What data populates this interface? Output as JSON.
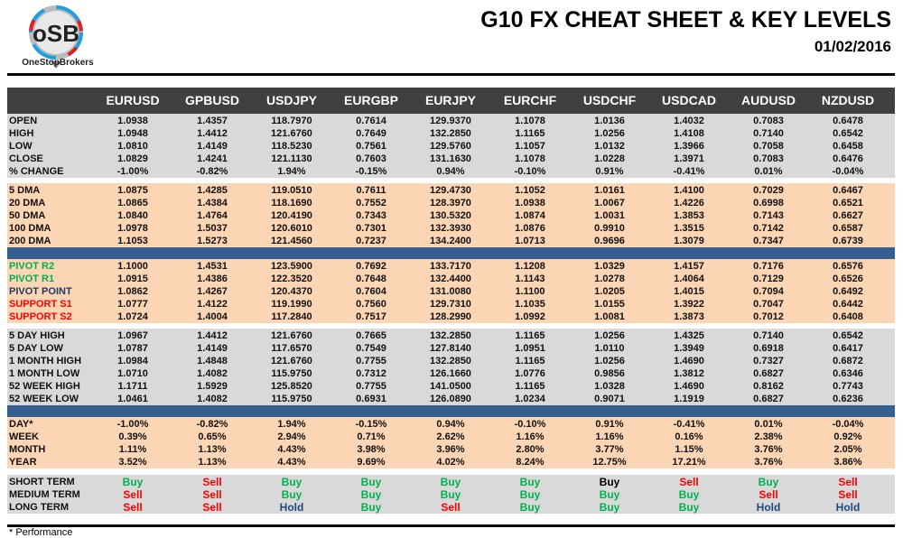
{
  "header": {
    "title": "G10 FX CHEAT SHEET & KEY LEVELS",
    "date": "01/02/2016",
    "logo_text": "OSB",
    "logo_caption": "OneStopBrokers"
  },
  "columns": [
    "EURUSD",
    "GPBUSD",
    "USDJPY",
    "EURGBP",
    "EURJPY",
    "EURCHF",
    "USDCHF",
    "USDCAD",
    "AUDUSD",
    "NZDUSD"
  ],
  "colors": {
    "header_bg": "#404040",
    "grey": "#d9d9d9",
    "peach": "#fcd5b4",
    "blue_band": "#366092",
    "green": "#00b050",
    "red": "#ff0000",
    "navy": "#1f3864",
    "hold": "#1f497d",
    "black": "#000000"
  },
  "sections": [
    {
      "bg": "grey",
      "rows": [
        {
          "label": "OPEN",
          "values": [
            "1.0938",
            "1.4357",
            "118.7970",
            "0.7614",
            "129.9370",
            "1.1078",
            "1.0136",
            "1.4032",
            "0.7083",
            "0.6478"
          ]
        },
        {
          "label": "HIGH",
          "values": [
            "1.0948",
            "1.4412",
            "121.6760",
            "0.7649",
            "132.2850",
            "1.1165",
            "1.0256",
            "1.4108",
            "0.7140",
            "0.6542"
          ]
        },
        {
          "label": "LOW",
          "values": [
            "1.0810",
            "1.4149",
            "118.5230",
            "0.7561",
            "129.5760",
            "1.1057",
            "1.0132",
            "1.3966",
            "0.7058",
            "0.6458"
          ]
        },
        {
          "label": "CLOSE",
          "values": [
            "1.0829",
            "1.4241",
            "121.1130",
            "0.7603",
            "131.1630",
            "1.1078",
            "1.0228",
            "1.3971",
            "0.7083",
            "0.6476"
          ]
        },
        {
          "label": "% CHANGE",
          "values": [
            "-1.00%",
            "-0.82%",
            "1.94%",
            "-0.15%",
            "0.94%",
            "-0.10%",
            "0.91%",
            "-0.41%",
            "0.01%",
            "-0.04%"
          ]
        }
      ]
    },
    {
      "bg": "peach",
      "rows": [
        {
          "label": "5 DMA",
          "values": [
            "1.0875",
            "1.4285",
            "119.0510",
            "0.7611",
            "129.4730",
            "1.1052",
            "1.0161",
            "1.4100",
            "0.7029",
            "0.6467"
          ]
        },
        {
          "label": "20 DMA",
          "values": [
            "1.0865",
            "1.4384",
            "118.1690",
            "0.7552",
            "128.3970",
            "1.0938",
            "1.0067",
            "1.4226",
            "0.6998",
            "0.6521"
          ]
        },
        {
          "label": "50 DMA",
          "values": [
            "1.0840",
            "1.4764",
            "120.4190",
            "0.7343",
            "130.5320",
            "1.0874",
            "1.0031",
            "1.3853",
            "0.7143",
            "0.6627"
          ]
        },
        {
          "label": "100 DMA",
          "values": [
            "1.0978",
            "1.5037",
            "120.6010",
            "0.7301",
            "132.3930",
            "1.0876",
            "0.9910",
            "1.3515",
            "0.7142",
            "0.6587"
          ]
        },
        {
          "label": "200 DMA",
          "values": [
            "1.1053",
            "1.5273",
            "121.4560",
            "0.7237",
            "134.2400",
            "1.0713",
            "0.9696",
            "1.3079",
            "0.7347",
            "0.6739"
          ]
        }
      ]
    },
    {
      "bg": "peach",
      "rows": [
        {
          "label": "PIVOT R2",
          "label_color": "green",
          "values": [
            "1.1000",
            "1.4531",
            "123.5900",
            "0.7692",
            "133.7170",
            "1.1208",
            "1.0329",
            "1.4157",
            "0.7176",
            "0.6576"
          ]
        },
        {
          "label": "PIVOT R1",
          "label_color": "green",
          "values": [
            "1.0915",
            "1.4386",
            "122.3520",
            "0.7648",
            "132.4400",
            "1.1143",
            "1.0278",
            "1.4064",
            "0.7129",
            "0.6526"
          ]
        },
        {
          "label": "PIVOT POINT",
          "label_color": "navy",
          "values": [
            "1.0862",
            "1.4267",
            "120.4370",
            "0.7604",
            "131.0080",
            "1.1100",
            "1.0205",
            "1.4015",
            "0.7094",
            "0.6492"
          ]
        },
        {
          "label": "SUPPORT S1",
          "label_color": "red",
          "values": [
            "1.0777",
            "1.4122",
            "119.1990",
            "0.7560",
            "129.7310",
            "1.1035",
            "1.0155",
            "1.3922",
            "0.7047",
            "0.6442"
          ]
        },
        {
          "label": "SUPPORT S2",
          "label_color": "red",
          "values": [
            "1.0724",
            "1.4004",
            "117.2840",
            "0.7517",
            "128.2990",
            "1.0992",
            "1.0081",
            "1.3873",
            "0.7012",
            "0.6408"
          ]
        }
      ]
    },
    {
      "bg": "grey",
      "rows": [
        {
          "label": "5 DAY HIGH",
          "values": [
            "1.0967",
            "1.4412",
            "121.6760",
            "0.7665",
            "132.2850",
            "1.1165",
            "1.0256",
            "1.4325",
            "0.7140",
            "0.6542"
          ]
        },
        {
          "label": "5 DAY LOW",
          "values": [
            "1.0787",
            "1.4149",
            "117.6570",
            "0.7549",
            "127.8140",
            "1.0951",
            "1.0110",
            "1.3949",
            "0.6918",
            "0.6417"
          ]
        },
        {
          "label": "1 MONTH HIGH",
          "values": [
            "1.0984",
            "1.4848",
            "121.6760",
            "0.7755",
            "132.2850",
            "1.1165",
            "1.0256",
            "1.4690",
            "0.7327",
            "0.6872"
          ]
        },
        {
          "label": "1 MONTH LOW",
          "values": [
            "1.0710",
            "1.4082",
            "115.9750",
            "0.7312",
            "126.1660",
            "1.0776",
            "0.9856",
            "1.3812",
            "0.6827",
            "0.6346"
          ]
        },
        {
          "label": "52 WEEK HIGH",
          "values": [
            "1.1711",
            "1.5929",
            "125.8520",
            "0.7755",
            "141.0500",
            "1.1165",
            "1.0328",
            "1.4690",
            "0.8162",
            "0.7743"
          ]
        },
        {
          "label": "52 WEEK LOW",
          "values": [
            "1.0461",
            "1.4082",
            "115.9750",
            "0.6931",
            "126.0890",
            "1.0234",
            "0.9071",
            "1.1919",
            "0.6827",
            "0.6236"
          ]
        }
      ]
    },
    {
      "bg": "peach",
      "rows": [
        {
          "label": "DAY*",
          "values": [
            "-1.00%",
            "-0.82%",
            "1.94%",
            "-0.15%",
            "0.94%",
            "-0.10%",
            "0.91%",
            "-0.41%",
            "0.01%",
            "-0.04%"
          ]
        },
        {
          "label": "WEEK",
          "values": [
            "0.39%",
            "0.65%",
            "2.94%",
            "0.71%",
            "2.62%",
            "1.16%",
            "1.16%",
            "0.16%",
            "2.38%",
            "0.92%"
          ]
        },
        {
          "label": "MONTH",
          "values": [
            "1.11%",
            "1.13%",
            "4.43%",
            "3.98%",
            "3.96%",
            "2.80%",
            "3.77%",
            "1.15%",
            "3.76%",
            "2.05%"
          ]
        },
        {
          "label": "YEAR",
          "values": [
            "3.52%",
            "1.13%",
            "4.43%",
            "9.69%",
            "4.02%",
            "8.24%",
            "12.75%",
            "17.21%",
            "3.76%",
            "3.86%"
          ]
        }
      ]
    },
    {
      "bg": "grey",
      "signals": true,
      "rows": [
        {
          "label": "SHORT TERM",
          "values": [
            "Buy",
            "Sell",
            "Buy",
            "Buy",
            "Buy",
            "Buy",
            "Buy",
            "Sell",
            "Buy",
            "Sell"
          ],
          "value_colors": [
            "green",
            "red",
            "green",
            "green",
            "green",
            "green",
            "black",
            "red",
            "green",
            "red"
          ]
        },
        {
          "label": "MEDIUM TERM",
          "values": [
            "Sell",
            "Sell",
            "Buy",
            "Buy",
            "Buy",
            "Buy",
            "Buy",
            "Buy",
            "Sell",
            "Sell"
          ],
          "value_colors": [
            "red",
            "red",
            "green",
            "green",
            "green",
            "green",
            "green",
            "green",
            "red",
            "red"
          ]
        },
        {
          "label": "LONG TERM",
          "values": [
            "Sell",
            "Sell",
            "Hold",
            "Buy",
            "Sell",
            "Buy",
            "Buy",
            "Buy",
            "Hold",
            "Hold"
          ],
          "value_colors": [
            "red",
            "red",
            "hold",
            "green",
            "red",
            "green",
            "green",
            "green",
            "hold",
            "hold"
          ]
        }
      ]
    }
  ],
  "footnote": "* Performance"
}
